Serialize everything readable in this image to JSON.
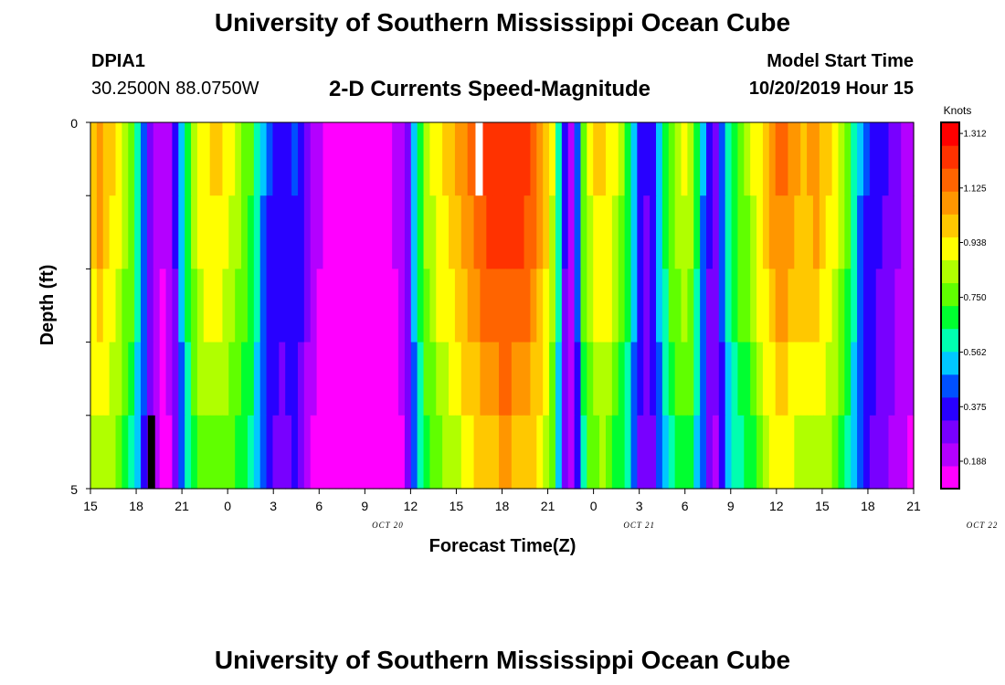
{
  "header": {
    "title": "University of Southern Mississippi Ocean Cube",
    "station_id": "DPIA1",
    "station_coords": "30.2500N 88.0750W",
    "subtitle": "2-D Currents Speed-Magnitude",
    "model_start_label": "Model Start Time",
    "model_start_value": "10/20/2019 Hour 15"
  },
  "footer": {
    "title": "University of Southern Mississippi Ocean Cube"
  },
  "chart_data": {
    "type": "heatmap",
    "title": "2-D Currents Speed-Magnitude",
    "xlabel": "Forecast Time(Z)",
    "ylabel": "Depth (ft)",
    "x_start_hour": 15,
    "hours_total": 54,
    "x_tick_labels": [
      "15",
      "18",
      "21",
      "0",
      "3",
      "6",
      "9",
      "12",
      "15",
      "18",
      "21",
      "0",
      "3",
      "6",
      "9",
      "12",
      "15",
      "18",
      "21"
    ],
    "date_labels": [
      {
        "text": "OCT 20",
        "hour": 19.5
      },
      {
        "text": "OCT 21",
        "hour": 36
      },
      {
        "text": "OCT 22",
        "hour": 58.5
      }
    ],
    "y_tick_labels": [
      "0",
      "5"
    ],
    "ylim": [
      0,
      5
    ],
    "depth_levels": 5,
    "colorbar": {
      "title": "Knots",
      "min": 0.094,
      "max": 1.35,
      "ticks": [
        "1.312",
        "1.125",
        "0.938",
        "0.750",
        "0.562",
        "0.375",
        "0.188"
      ],
      "colors": [
        "#ff00ff",
        "#b400ff",
        "#7800ff",
        "#2800ff",
        "#0050ff",
        "#00c8ff",
        "#00ffb0",
        "#00ff30",
        "#60ff00",
        "#b0ff00",
        "#ffff00",
        "#ffc800",
        "#ff9600",
        "#ff6400",
        "#ff3200",
        "#ff0000"
      ]
    },
    "speed_profile_knots": [
      1.02,
      1.07,
      1.02,
      0.98,
      0.92,
      0.84,
      0.78,
      0.64,
      0.47,
      0.32,
      0.22,
      0.18,
      0.21,
      0.35,
      0.55,
      0.72,
      0.86,
      0.92,
      0.95,
      0.97,
      0.96,
      0.93,
      0.89,
      0.85,
      0.8,
      0.74,
      0.62,
      0.5,
      0.42,
      0.38,
      0.36,
      0.38,
      0.42,
      0.36,
      0.28,
      0.2,
      0.18,
      0.17,
      0.17,
      0.17,
      0.17,
      0.17,
      0.17,
      0.17,
      0.17,
      0.17,
      0.17,
      0.17,
      0.18,
      0.2,
      0.32,
      0.55,
      0.72,
      0.84,
      0.9,
      0.95,
      0.98,
      1.02,
      1.06,
      1.1,
      1.13,
      1.17,
      1.2,
      1.23,
      1.25,
      1.27,
      1.27,
      1.26,
      1.25,
      1.22,
      1.17,
      1.1,
      1.02,
      0.9,
      0.62,
      0.35,
      0.25,
      0.45,
      0.78,
      0.9,
      0.96,
      0.98,
      0.95,
      0.88,
      0.82,
      0.72,
      0.55,
      0.38,
      0.33,
      0.4,
      0.55,
      0.68,
      0.78,
      0.85,
      0.88,
      0.84,
      0.68,
      0.5,
      0.35,
      0.3,
      0.45,
      0.62,
      0.72,
      0.78,
      0.82,
      0.88,
      0.95,
      1.02,
      1.08,
      1.12,
      1.12,
      1.08,
      1.05,
      1.03,
      1.05,
      1.07,
      1.02,
      0.98,
      0.93,
      0.85,
      0.75,
      0.62,
      0.5,
      0.42,
      0.38,
      0.35,
      0.33,
      0.3,
      0.26,
      0.22,
      0.2
    ],
    "depth_factors": [
      1.0,
      0.97,
      0.93,
      0.88,
      0.82
    ],
    "missing_cells": [
      {
        "hour": 25.5,
        "level": 0,
        "color": "#ffffff"
      },
      {
        "hour": 4.0,
        "level": 4,
        "color": "#000000"
      }
    ]
  }
}
